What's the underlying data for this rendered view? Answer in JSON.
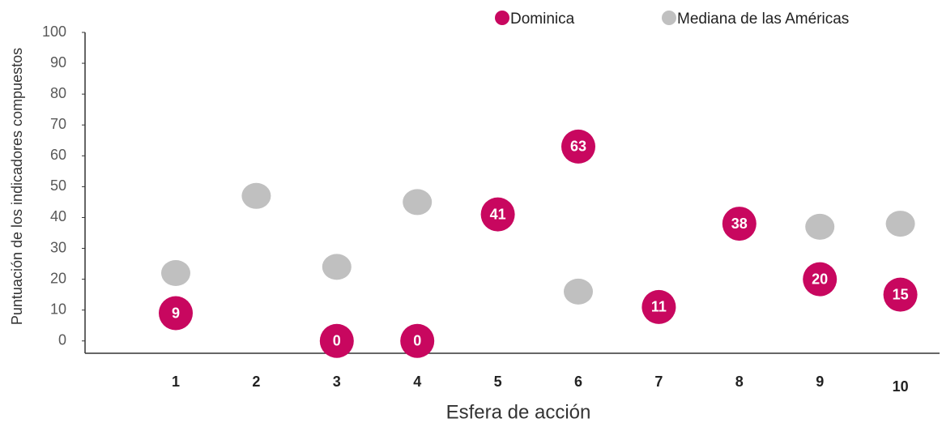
{
  "chart_data": {
    "type": "dot",
    "x_label": "Esfera de acción",
    "y_label": "Puntuación de los indicadores compuestos",
    "categories": [
      "1",
      "2",
      "3",
      "4",
      "5",
      "6",
      "7",
      "8",
      "9",
      "10"
    ],
    "series": [
      {
        "name": "Mediana de las Américas",
        "color": "#c0c0c0",
        "values": [
          22,
          47,
          24,
          45,
          42,
          16,
          11,
          37,
          37,
          38
        ]
      },
      {
        "name": "Dominica",
        "color": "#c8075f",
        "values": [
          9,
          null,
          0,
          0,
          41,
          63,
          11,
          38,
          20,
          15
        ]
      }
    ],
    "ylim": [
      -4,
      100
    ],
    "yticks": [
      0,
      10,
      20,
      30,
      40,
      50,
      60,
      70,
      80,
      90,
      100
    ],
    "legend": "top"
  }
}
